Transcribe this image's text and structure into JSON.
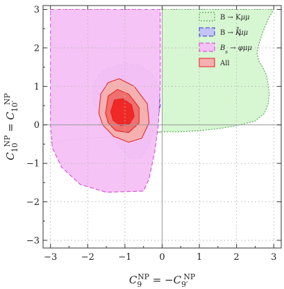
{
  "chart_data": {
    "type": "contour",
    "xlabel_main": "C",
    "xlabel_parts": [
      {
        "t": "C",
        "style": "italic"
      },
      {
        "t": "9",
        "shift": "sub"
      },
      {
        "t": "NP",
        "shift": "super"
      },
      {
        "t": " = −",
        "style": "normal"
      },
      {
        "t": "C",
        "style": "italic"
      },
      {
        "t": "9′",
        "shift": "sub"
      },
      {
        "t": "NP",
        "shift": "super"
      }
    ],
    "ylabel_parts": [
      {
        "t": "C",
        "style": "italic"
      },
      {
        "t": "10",
        "shift": "sub"
      },
      {
        "t": "NP",
        "shift": "super"
      },
      {
        "t": " = ",
        "style": "normal"
      },
      {
        "t": "C",
        "style": "italic"
      },
      {
        "t": "10′",
        "shift": "sub"
      },
      {
        "t": "NP",
        "shift": "super"
      }
    ],
    "xlim": [
      -3.2,
      3.2
    ],
    "ylim": [
      -3.2,
      3.1
    ],
    "xticks": [
      -3,
      -2,
      -1,
      0,
      1,
      2,
      3
    ],
    "yticks": [
      -3,
      -2,
      -1,
      0,
      1,
      2,
      3
    ],
    "xtick_labels": [
      "−3",
      "−2",
      "−1",
      "0",
      "1",
      "2",
      "3"
    ],
    "ytick_labels": [
      "−3",
      "−2",
      "−1",
      "0",
      "1",
      "2",
      "3"
    ],
    "grid": true,
    "legend_position": "top-right",
    "series": [
      {
        "label_parts": [
          {
            "t": "B → K"
          },
          {
            "t": "μμ",
            "style": "italic"
          }
        ],
        "fill": "#d5f5d0",
        "stroke": "#3aa23a",
        "dash": "2,2",
        "regions": [
          [
            [
              -3.0,
              -0.45
            ],
            [
              -2.0,
              -0.35
            ],
            [
              -1.0,
              -0.28
            ],
            [
              0.0,
              -0.18
            ],
            [
              0.5,
              -0.18
            ],
            [
              1.0,
              -0.15
            ],
            [
              1.5,
              -0.1
            ],
            [
              2.0,
              -0.02
            ],
            [
              2.5,
              0.1
            ],
            [
              2.75,
              0.3
            ],
            [
              2.85,
              0.55
            ],
            [
              2.88,
              0.8
            ],
            [
              2.85,
              1.05
            ],
            [
              2.8,
              1.3
            ],
            [
              2.7,
              1.5
            ],
            [
              2.6,
              1.65
            ],
            [
              2.55,
              1.85
            ],
            [
              2.6,
              2.1
            ],
            [
              2.7,
              2.4
            ],
            [
              2.85,
              2.75
            ],
            [
              3.0,
              3.0
            ],
            [
              0.0,
              3.0
            ],
            [
              0.0,
              -0.18
            ],
            [
              -1.0,
              -0.28
            ],
            [
              -2.0,
              -0.35
            ],
            [
              -3.0,
              -0.45
            ]
          ]
        ]
      },
      {
        "label_parts": [
          {
            "t": "B → "
          },
          {
            "t": "K",
            "style": "italic"
          },
          {
            "t": "*",
            "shift": "super"
          },
          {
            "t": "μμ",
            "style": "italic"
          }
        ],
        "fill": "#c4c4f5",
        "stroke": "#3535c8",
        "dash": "6,3",
        "regions": [
          [
            [
              -1.5,
              1.45
            ],
            [
              -1.0,
              1.6
            ],
            [
              -0.6,
              1.55
            ],
            [
              -0.25,
              1.3
            ],
            [
              -0.08,
              0.95
            ],
            [
              -0.05,
              0.5
            ],
            [
              -0.15,
              0.0
            ],
            [
              -0.35,
              -0.5
            ],
            [
              -0.55,
              -0.85
            ],
            [
              -0.85,
              -0.88
            ],
            [
              -1.2,
              -0.5
            ],
            [
              -1.6,
              0.1
            ],
            [
              -1.85,
              0.6
            ],
            [
              -1.85,
              1.0
            ],
            [
              -1.7,
              1.3
            ],
            [
              -1.5,
              1.45
            ]
          ]
        ]
      },
      {
        "label_parts": [
          {
            "t": "B",
            "style": "italic"
          },
          {
            "t": "s",
            "shift": "sub",
            "style": "italic"
          },
          {
            "t": " → "
          },
          {
            "t": "φμμ",
            "style": "italic"
          }
        ],
        "fill": "#f5c0f5",
        "stroke": "#d040d0",
        "dash": "6,3",
        "regions": [
          [
            [
              -3.0,
              3.0
            ],
            [
              -0.05,
              3.0
            ],
            [
              -0.05,
              1.0
            ],
            [
              -0.1,
              0.0
            ],
            [
              -0.2,
              -0.7
            ],
            [
              -0.35,
              -1.4
            ],
            [
              -0.5,
              -1.72
            ],
            [
              -1.5,
              -1.75
            ],
            [
              -2.2,
              -1.55
            ],
            [
              -2.7,
              -1.1
            ],
            [
              -2.95,
              -0.6
            ],
            [
              -3.0,
              0.0
            ],
            [
              -3.0,
              3.0
            ]
          ]
        ]
      },
      {
        "label_parts": [
          {
            "t": "All"
          }
        ],
        "fill": "#f5b4b4",
        "stroke": "#dd2020",
        "dash": "",
        "regions": [
          [
            [
              -1.7,
              0.3
            ],
            [
              -1.65,
              0.8
            ],
            [
              -1.45,
              1.1
            ],
            [
              -1.15,
              1.2
            ],
            [
              -0.75,
              1.0
            ],
            [
              -0.4,
              0.55
            ],
            [
              -0.35,
              0.05
            ],
            [
              -0.55,
              -0.35
            ],
            [
              -0.9,
              -0.45
            ],
            [
              -1.3,
              -0.3
            ],
            [
              -1.6,
              0.0
            ],
            [
              -1.7,
              0.3
            ]
          ],
          [
            [
              -1.52,
              0.3
            ],
            [
              -1.45,
              0.75
            ],
            [
              -1.2,
              0.92
            ],
            [
              -0.9,
              0.8
            ],
            [
              -0.62,
              0.45
            ],
            [
              -0.62,
              0.05
            ],
            [
              -0.9,
              -0.2
            ],
            [
              -1.25,
              -0.15
            ],
            [
              -1.45,
              0.05
            ],
            [
              -1.52,
              0.3
            ]
          ],
          [
            [
              -1.38,
              0.35
            ],
            [
              -1.28,
              0.65
            ],
            [
              -1.05,
              0.68
            ],
            [
              -0.82,
              0.52
            ],
            [
              -0.75,
              0.22
            ],
            [
              -0.88,
              0.02
            ],
            [
              -1.12,
              -0.02
            ],
            [
              -1.32,
              0.12
            ],
            [
              -1.38,
              0.35
            ]
          ]
        ],
        "region_fills": [
          "#f7b0b0",
          "#f07070",
          "#f02828"
        ]
      }
    ]
  }
}
